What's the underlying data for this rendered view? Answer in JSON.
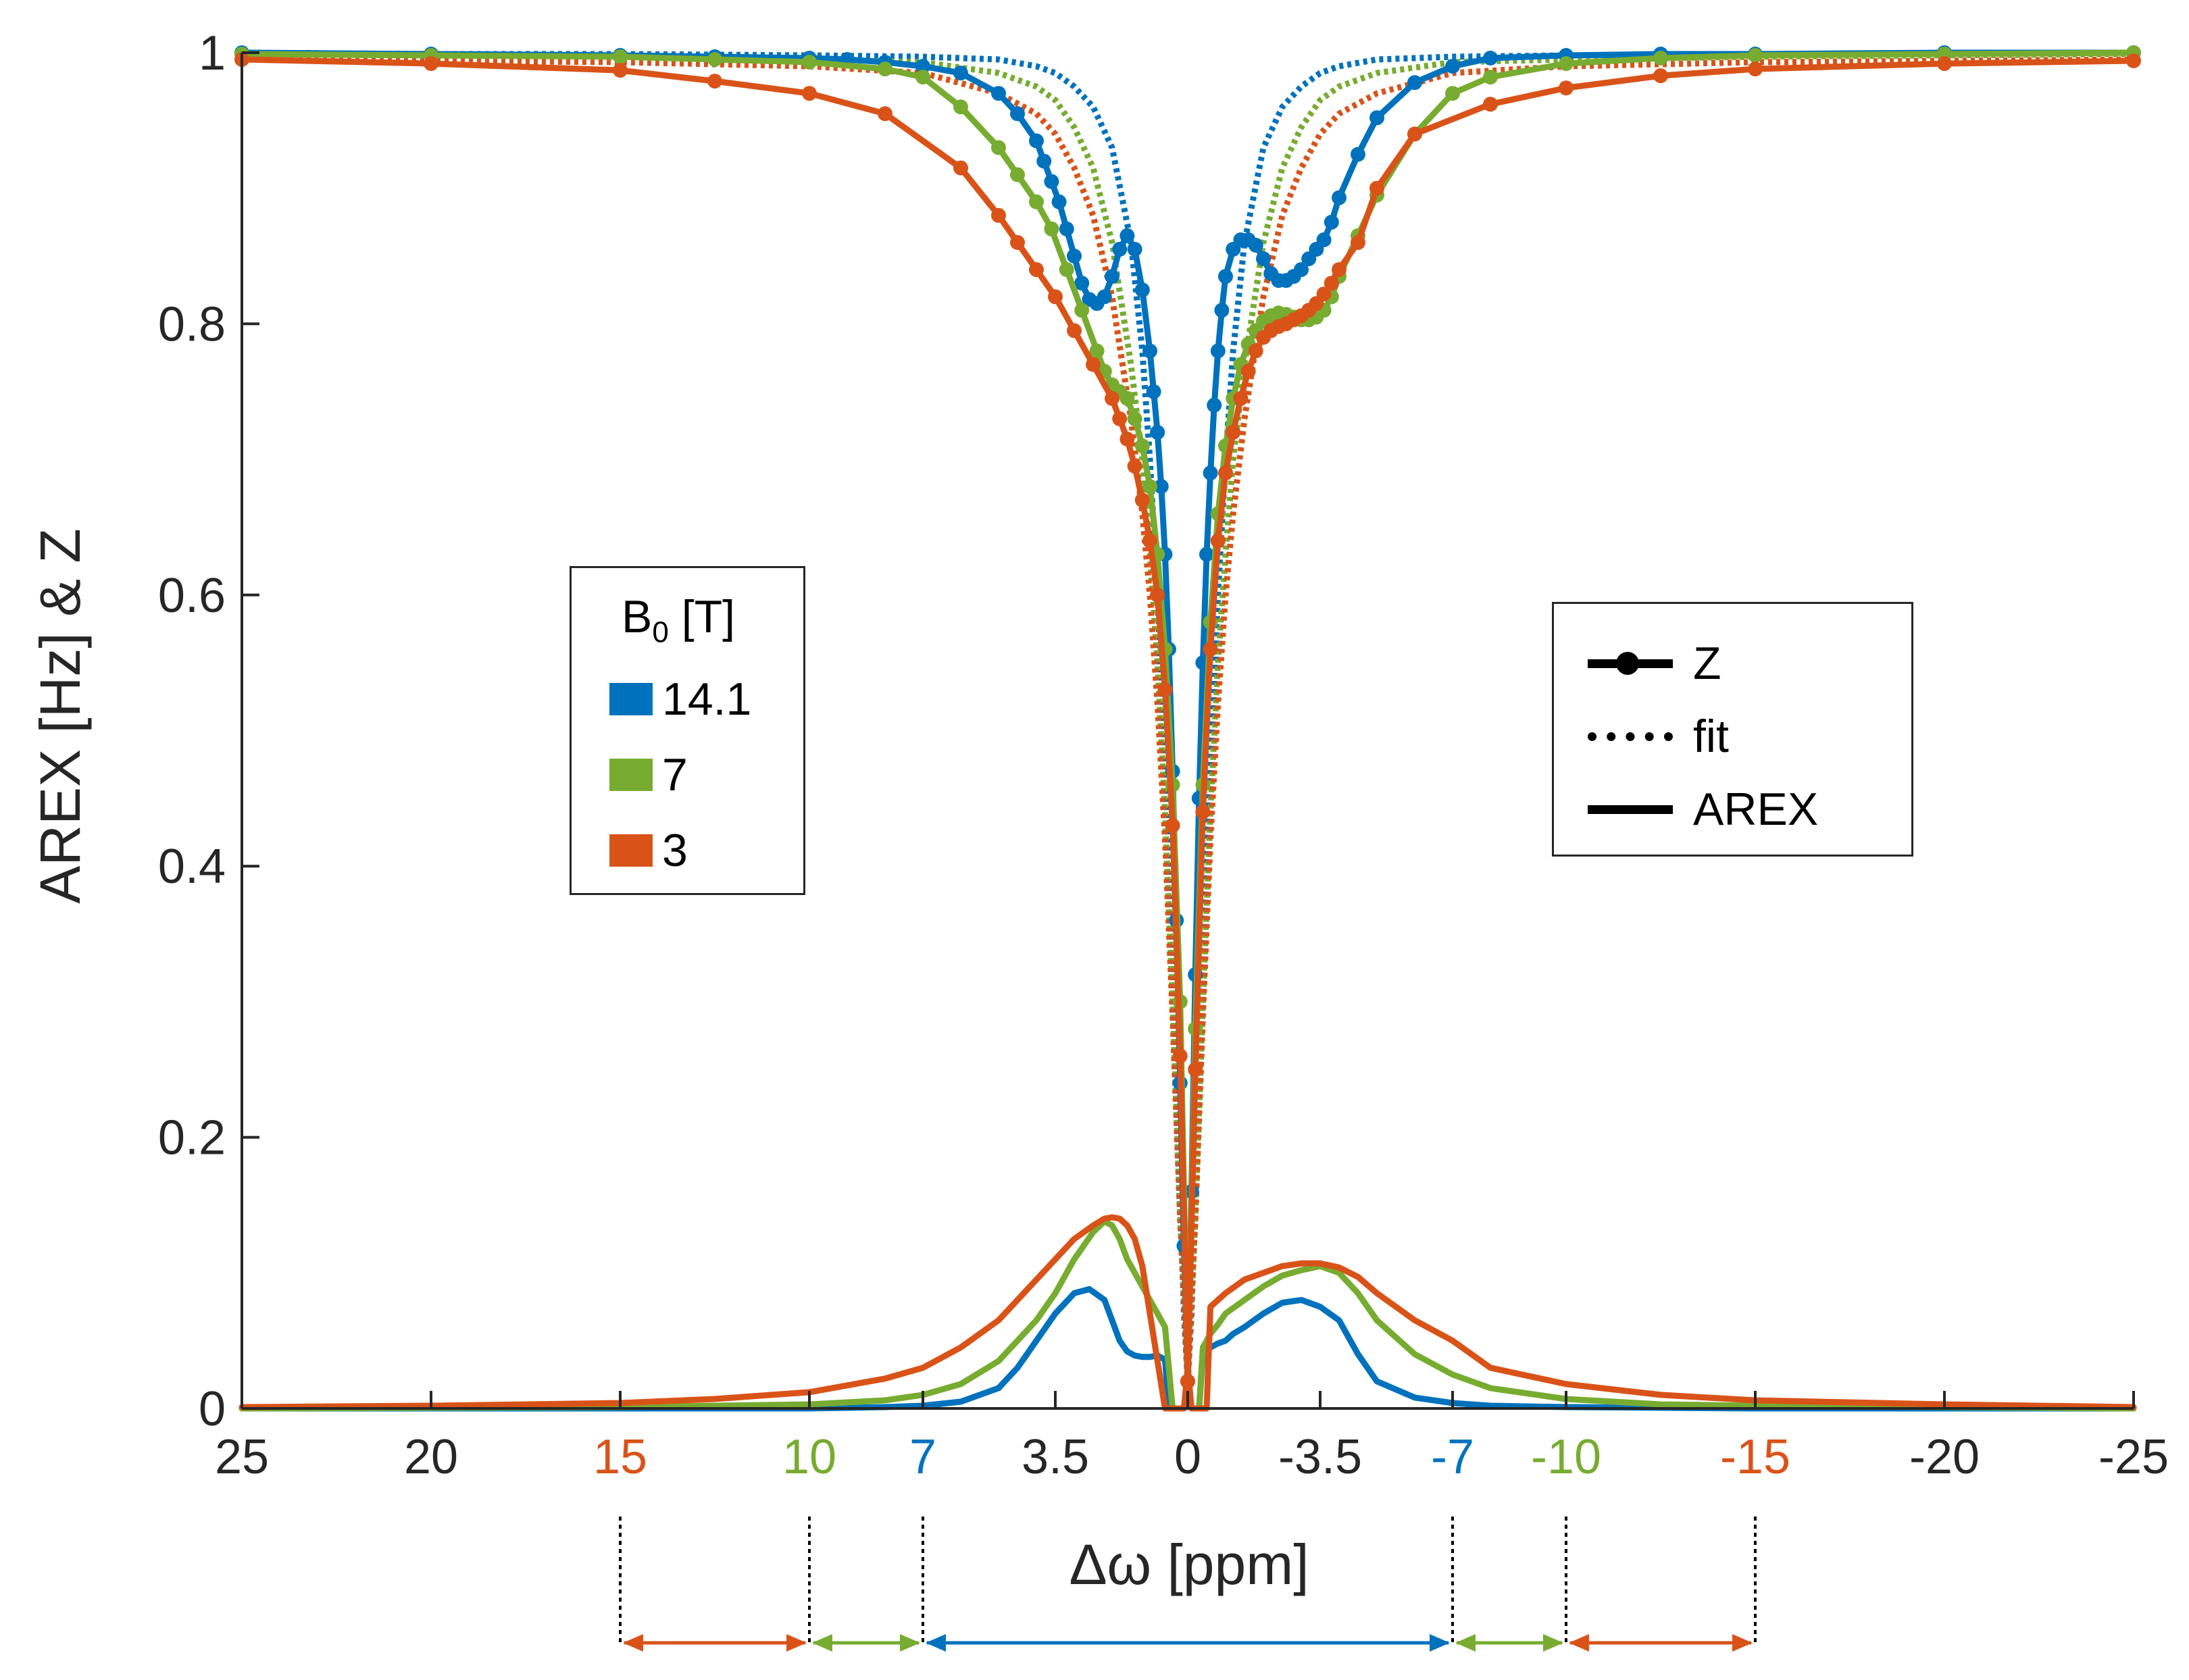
{
  "chart_data": {
    "type": "line",
    "xlabel": "Δω [ppm]",
    "ylabel": "AREX [Hz] & Z",
    "xlim": [
      25,
      -25
    ],
    "ylim": [
      0,
      1
    ],
    "x_reversed": true,
    "grid": false,
    "x_ticks": [
      {
        "value": 25,
        "label": "25",
        "color": "#262626"
      },
      {
        "value": 20,
        "label": "20",
        "color": "#262626"
      },
      {
        "value": 15,
        "label": "15",
        "color": "#D95319"
      },
      {
        "value": 10,
        "label": "10",
        "color": "#77AC30"
      },
      {
        "value": 7,
        "label": "7",
        "color": "#0072BD"
      },
      {
        "value": 3.5,
        "label": "3.5",
        "color": "#262626"
      },
      {
        "value": 0,
        "label": "0",
        "color": "#262626"
      },
      {
        "value": -3.5,
        "label": "-3.5",
        "color": "#262626"
      },
      {
        "value": -7,
        "label": "-7",
        "color": "#0072BD"
      },
      {
        "value": -10,
        "label": "-10",
        "color": "#77AC30"
      },
      {
        "value": -15,
        "label": "-15",
        "color": "#D95319"
      },
      {
        "value": -20,
        "label": "-20",
        "color": "#262626"
      },
      {
        "value": -25,
        "label": "-25",
        "color": "#262626"
      }
    ],
    "y_ticks": [
      {
        "value": 0,
        "label": "0"
      },
      {
        "value": 0.2,
        "label": "0.2"
      },
      {
        "value": 0.4,
        "label": "0.4"
      },
      {
        "value": 0.6,
        "label": "0.6"
      },
      {
        "value": 0.8,
        "label": "0.8"
      },
      {
        "value": 1,
        "label": "1"
      }
    ],
    "legend_b0": {
      "title": "B",
      "title_sub": "0",
      "title_tail": " [T]",
      "placement": "center-left",
      "items": [
        {
          "label": "14.1",
          "color": "#0072BD"
        },
        {
          "label": "7",
          "color": "#77AC30"
        },
        {
          "label": "3",
          "color": "#D95319"
        }
      ]
    },
    "legend_style": {
      "placement": "center-right",
      "items": [
        {
          "label": "Z",
          "style": "line-marker"
        },
        {
          "label": "fit",
          "style": "dotted"
        },
        {
          "label": "AREX",
          "style": "solid"
        }
      ]
    },
    "series": [
      {
        "color": "#0072BD",
        "b0": "14.1",
        "kind": "Z",
        "x": [
          25,
          20,
          15,
          12.5,
          10,
          9,
          8,
          7,
          6,
          5,
          4.5,
          4,
          3.8,
          3.6,
          3.4,
          3.2,
          3,
          2.8,
          2.6,
          2.4,
          2.2,
          2,
          1.8,
          1.6,
          1.4,
          1.2,
          1,
          0.9,
          0.8,
          0.7,
          0.6,
          0.5,
          0.4,
          0.3,
          0.2,
          0.1,
          0,
          -0.1,
          -0.2,
          -0.3,
          -0.4,
          -0.5,
          -0.6,
          -0.7,
          -0.8,
          -0.9,
          -1,
          -1.2,
          -1.4,
          -1.6,
          -1.8,
          -2,
          -2.2,
          -2.4,
          -2.6,
          -2.8,
          -3,
          -3.2,
          -3.4,
          -3.6,
          -3.8,
          -4,
          -4.5,
          -5,
          -6,
          -7,
          -8,
          -10,
          -12.5,
          -15,
          -20,
          -25
        ],
        "values": [
          1.0,
          0.999,
          0.998,
          0.997,
          0.996,
          0.995,
          0.993,
          0.99,
          0.985,
          0.97,
          0.955,
          0.935,
          0.92,
          0.905,
          0.89,
          0.87,
          0.85,
          0.83,
          0.818,
          0.815,
          0.82,
          0.835,
          0.855,
          0.865,
          0.855,
          0.825,
          0.78,
          0.75,
          0.72,
          0.68,
          0.63,
          0.56,
          0.47,
          0.36,
          0.24,
          0.12,
          0.02,
          0.16,
          0.32,
          0.45,
          0.55,
          0.63,
          0.69,
          0.74,
          0.78,
          0.81,
          0.835,
          0.855,
          0.862,
          0.862,
          0.858,
          0.848,
          0.837,
          0.832,
          0.832,
          0.835,
          0.84,
          0.848,
          0.855,
          0.862,
          0.875,
          0.893,
          0.925,
          0.952,
          0.978,
          0.99,
          0.996,
          0.998,
          0.999,
          0.999,
          1.0,
          1.0
        ]
      },
      {
        "color": "#77AC30",
        "b0": "7",
        "kind": "Z",
        "x": [
          25,
          20,
          15,
          12.5,
          10,
          8,
          7,
          6,
          5,
          4.5,
          4,
          3.6,
          3.2,
          2.8,
          2.4,
          2.2,
          2,
          1.8,
          1.6,
          1.4,
          1.2,
          1,
          0.8,
          0.6,
          0.4,
          0.2,
          0,
          -0.2,
          -0.4,
          -0.6,
          -0.8,
          -1,
          -1.2,
          -1.4,
          -1.6,
          -1.8,
          -2,
          -2.2,
          -2.4,
          -2.6,
          -2.8,
          -3,
          -3.2,
          -3.4,
          -3.6,
          -3.8,
          -4,
          -4.5,
          -5,
          -6,
          -7,
          -8,
          -10,
          -12.5,
          -15,
          -20,
          -25
        ],
        "values": [
          0.999,
          0.998,
          0.997,
          0.995,
          0.993,
          0.988,
          0.982,
          0.96,
          0.93,
          0.91,
          0.89,
          0.87,
          0.84,
          0.81,
          0.78,
          0.765,
          0.755,
          0.75,
          0.745,
          0.73,
          0.71,
          0.68,
          0.63,
          0.56,
          0.46,
          0.3,
          0.02,
          0.28,
          0.46,
          0.58,
          0.66,
          0.71,
          0.745,
          0.77,
          0.785,
          0.795,
          0.802,
          0.806,
          0.808,
          0.807,
          0.805,
          0.803,
          0.803,
          0.805,
          0.81,
          0.82,
          0.835,
          0.865,
          0.895,
          0.94,
          0.97,
          0.982,
          0.992,
          0.996,
          0.998,
          0.999,
          1.0
        ]
      },
      {
        "color": "#D95319",
        "b0": "3",
        "kind": "Z",
        "x": [
          25,
          20,
          15,
          12.5,
          10,
          8,
          6,
          5,
          4.5,
          4,
          3.5,
          3,
          2.5,
          2,
          1.8,
          1.6,
          1.4,
          1.2,
          1,
          0.8,
          0.6,
          0.4,
          0.2,
          0,
          -0.2,
          -0.4,
          -0.6,
          -0.8,
          -1,
          -1.2,
          -1.4,
          -1.6,
          -1.8,
          -2,
          -2.2,
          -2.4,
          -2.6,
          -2.8,
          -3,
          -3.2,
          -3.4,
          -3.6,
          -3.8,
          -4,
          -4.5,
          -5,
          -6,
          -8,
          -10,
          -12.5,
          -15,
          -20,
          -25
        ],
        "values": [
          0.995,
          0.992,
          0.987,
          0.979,
          0.97,
          0.955,
          0.915,
          0.88,
          0.86,
          0.84,
          0.82,
          0.795,
          0.77,
          0.745,
          0.73,
          0.715,
          0.695,
          0.67,
          0.64,
          0.6,
          0.53,
          0.43,
          0.26,
          0.02,
          0.25,
          0.44,
          0.56,
          0.64,
          0.69,
          0.72,
          0.745,
          0.765,
          0.78,
          0.79,
          0.795,
          0.798,
          0.8,
          0.803,
          0.806,
          0.81,
          0.815,
          0.822,
          0.83,
          0.84,
          0.86,
          0.9,
          0.94,
          0.962,
          0.974,
          0.983,
          0.988,
          0.992,
          0.994
        ]
      },
      {
        "color": "#0072BD",
        "b0": "14.1",
        "kind": "fit",
        "x": [
          25,
          20,
          15,
          10,
          7,
          5,
          4,
          3.5,
          3,
          2.5,
          2,
          1.5,
          1.2,
          1,
          0.8,
          0.6,
          0.5,
          0.4,
          0.3,
          0.2,
          0.1,
          0,
          -0.1,
          -0.2,
          -0.3,
          -0.4,
          -0.5,
          -0.6,
          -0.8,
          -1,
          -1.2,
          -1.5,
          -2,
          -2.5,
          -3,
          -3.5,
          -4,
          -5,
          -7,
          -10,
          -15,
          -20,
          -25
        ],
        "values": [
          1.0,
          0.999,
          0.999,
          0.998,
          0.997,
          0.995,
          0.99,
          0.985,
          0.975,
          0.96,
          0.93,
          0.86,
          0.78,
          0.7,
          0.6,
          0.47,
          0.4,
          0.33,
          0.25,
          0.16,
          0.07,
          0.02,
          0.07,
          0.16,
          0.25,
          0.33,
          0.4,
          0.47,
          0.6,
          0.7,
          0.78,
          0.86,
          0.93,
          0.96,
          0.975,
          0.985,
          0.99,
          0.995,
          0.997,
          0.998,
          0.999,
          0.999,
          1.0
        ]
      },
      {
        "color": "#77AC30",
        "b0": "7",
        "kind": "fit",
        "x": [
          25,
          20,
          15,
          10,
          7,
          5,
          4,
          3.5,
          3,
          2.5,
          2,
          1.5,
          1.2,
          1,
          0.8,
          0.6,
          0.4,
          0.2,
          0,
          -0.2,
          -0.4,
          -0.6,
          -0.8,
          -1,
          -1.2,
          -1.5,
          -2,
          -2.5,
          -3,
          -3.5,
          -4,
          -5,
          -7,
          -10,
          -15,
          -20,
          -25
        ],
        "values": [
          0.999,
          0.998,
          0.997,
          0.995,
          0.993,
          0.985,
          0.975,
          0.965,
          0.945,
          0.915,
          0.86,
          0.77,
          0.7,
          0.63,
          0.55,
          0.44,
          0.3,
          0.14,
          0.02,
          0.14,
          0.3,
          0.44,
          0.55,
          0.63,
          0.7,
          0.77,
          0.86,
          0.915,
          0.945,
          0.965,
          0.975,
          0.985,
          0.993,
          0.995,
          0.997,
          0.998,
          0.999
        ]
      },
      {
        "color": "#D95319",
        "b0": "3",
        "kind": "fit",
        "x": [
          25,
          20,
          15,
          10,
          7,
          5,
          4,
          3.5,
          3,
          2.5,
          2,
          1.5,
          1.2,
          1,
          0.8,
          0.6,
          0.4,
          0.2,
          0,
          -0.2,
          -0.4,
          -0.6,
          -0.8,
          -1,
          -1.2,
          -1.5,
          -2,
          -2.5,
          -3,
          -3.5,
          -4,
          -5,
          -7,
          -10,
          -15,
          -20,
          -25
        ],
        "values": [
          0.995,
          0.994,
          0.993,
          0.99,
          0.985,
          0.97,
          0.955,
          0.94,
          0.915,
          0.88,
          0.82,
          0.73,
          0.66,
          0.6,
          0.52,
          0.42,
          0.29,
          0.14,
          0.02,
          0.14,
          0.29,
          0.42,
          0.52,
          0.6,
          0.66,
          0.73,
          0.82,
          0.88,
          0.915,
          0.94,
          0.955,
          0.97,
          0.985,
          0.99,
          0.993,
          0.994,
          0.995
        ]
      },
      {
        "color": "#0072BD",
        "b0": "14.1",
        "kind": "AREX",
        "x": [
          25,
          15,
          10,
          8,
          7,
          6,
          5,
          4.5,
          4,
          3.5,
          3,
          2.6,
          2.2,
          2,
          1.8,
          1.6,
          1.4,
          1.2,
          1,
          0.8,
          0.6,
          0.5,
          0.4,
          0.3,
          0.2,
          0.1,
          0,
          -0.1,
          -0.2,
          -0.3,
          -0.4,
          -0.6,
          -0.8,
          -1,
          -1.2,
          -1.5,
          -2,
          -2.5,
          -3,
          -3.5,
          -4,
          -4.5,
          -5,
          -6,
          -7,
          -8,
          -10,
          -15,
          -25
        ],
        "values": [
          0.0,
          0.0,
          0.0,
          0.001,
          0.002,
          0.005,
          0.015,
          0.03,
          0.05,
          0.07,
          0.085,
          0.088,
          0.08,
          0.065,
          0.05,
          0.042,
          0.039,
          0.038,
          0.038,
          0.039,
          0.036,
          0.0,
          0.0,
          0.0,
          0.0,
          0.0,
          0.018,
          0.0,
          0.0,
          0.0,
          0.04,
          0.045,
          0.048,
          0.05,
          0.055,
          0.06,
          0.07,
          0.078,
          0.08,
          0.075,
          0.065,
          0.04,
          0.02,
          0.008,
          0.004,
          0.002,
          0.001,
          0.0,
          0.0
        ]
      },
      {
        "color": "#77AC30",
        "b0": "7",
        "kind": "AREX",
        "x": [
          25,
          15,
          12.5,
          10,
          8,
          7,
          6,
          5,
          4.5,
          4,
          3.5,
          3,
          2.5,
          2.2,
          2,
          1.8,
          1.6,
          1.4,
          1.2,
          1,
          0.8,
          0.6,
          0.4,
          0.3,
          0.2,
          0.1,
          0,
          -0.1,
          -0.2,
          -0.3,
          -0.4,
          -0.6,
          -0.8,
          -1,
          -1.5,
          -2,
          -2.5,
          -3,
          -3.5,
          -4,
          -4.5,
          -5,
          -6,
          -7,
          -8,
          -10,
          -12.5,
          -15,
          -25
        ],
        "values": [
          0.0,
          0.001,
          0.002,
          0.003,
          0.006,
          0.01,
          0.018,
          0.035,
          0.05,
          0.065,
          0.085,
          0.11,
          0.13,
          0.138,
          0.135,
          0.125,
          0.11,
          0.1,
          0.09,
          0.08,
          0.07,
          0.06,
          0.0,
          0.0,
          0.0,
          0.0,
          0.025,
          0.0,
          0.0,
          0.0,
          0.045,
          0.055,
          0.062,
          0.07,
          0.08,
          0.09,
          0.098,
          0.102,
          0.105,
          0.1,
          0.085,
          0.065,
          0.04,
          0.025,
          0.015,
          0.007,
          0.003,
          0.002,
          0.0
        ]
      },
      {
        "color": "#D95319",
        "b0": "3",
        "kind": "AREX",
        "x": [
          25,
          20,
          15,
          12.5,
          10,
          8,
          7,
          6,
          5,
          4.5,
          4,
          3.5,
          3,
          2.5,
          2.2,
          2,
          1.8,
          1.6,
          1.4,
          1.2,
          1,
          0.8,
          0.6,
          0.5,
          0.4,
          0.3,
          0.2,
          0.1,
          0,
          -0.1,
          -0.2,
          -0.3,
          -0.4,
          -0.5,
          -0.6,
          -0.8,
          -1,
          -1.5,
          -2,
          -2.5,
          -3,
          -3.5,
          -4,
          -4.5,
          -5,
          -6,
          -7,
          -8,
          -10,
          -12.5,
          -15,
          -20,
          -25
        ],
        "values": [
          0.001,
          0.002,
          0.004,
          0.007,
          0.012,
          0.022,
          0.03,
          0.045,
          0.065,
          0.08,
          0.095,
          0.11,
          0.125,
          0.135,
          0.14,
          0.141,
          0.14,
          0.135,
          0.125,
          0.105,
          0.07,
          0.035,
          0.0,
          0.0,
          0.0,
          0.0,
          0.0,
          0.0,
          0.03,
          0.0,
          0.0,
          0.0,
          0.0,
          0.0,
          0.075,
          0.08,
          0.085,
          0.095,
          0.1,
          0.105,
          0.107,
          0.107,
          0.104,
          0.097,
          0.085,
          0.065,
          0.05,
          0.03,
          0.018,
          0.01,
          0.006,
          0.003,
          0.001
        ]
      }
    ],
    "range_arrows": [
      {
        "from": 15,
        "to": 10,
        "color": "#D95319"
      },
      {
        "from": 10,
        "to": 7,
        "color": "#77AC30"
      },
      {
        "from": 7,
        "to": -7,
        "color": "#0072BD"
      },
      {
        "from": -7,
        "to": -10,
        "color": "#77AC30"
      },
      {
        "from": -10,
        "to": -15,
        "color": "#D95319"
      }
    ],
    "range_markers": [
      15,
      10,
      7,
      -7,
      -10,
      -15
    ]
  }
}
